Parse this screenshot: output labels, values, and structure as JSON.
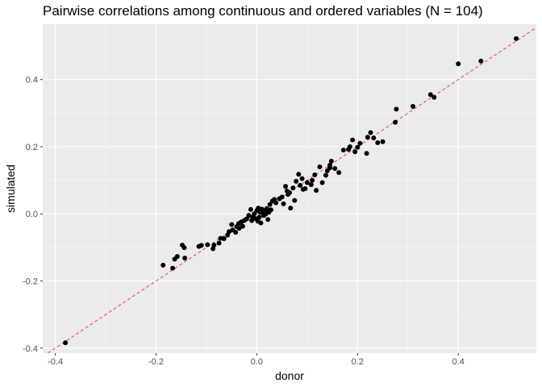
{
  "chart_data": {
    "type": "scatter",
    "title": "Pairwise correlations among continuous and ordered variables (N = 104)",
    "xlabel": "donor",
    "ylabel": "simulated",
    "xlim": [
      -0.425,
      0.555
    ],
    "ylim": [
      -0.415,
      0.565
    ],
    "xticks": [
      -0.4,
      -0.2,
      0.0,
      0.2,
      0.4
    ],
    "yticks": [
      -0.4,
      -0.2,
      0.0,
      0.2,
      0.4
    ],
    "xtick_labels": [
      "-0.4",
      "-0.2",
      "0.0",
      "0.2",
      "0.4"
    ],
    "ytick_labels": [
      "-0.4",
      "-0.2",
      "0.0",
      "0.2",
      "0.4"
    ],
    "grid": true,
    "reference_line": {
      "slope": 1,
      "intercept": 0,
      "style": "dashed",
      "color": "#e05a6e"
    },
    "point_color": "#000000",
    "panel_background": "#ebebeb",
    "points": [
      [
        -0.38,
        -0.384
      ],
      [
        -0.186,
        -0.153
      ],
      [
        -0.167,
        -0.162
      ],
      [
        -0.163,
        -0.135
      ],
      [
        -0.158,
        -0.127
      ],
      [
        -0.148,
        -0.093
      ],
      [
        -0.144,
        -0.101
      ],
      [
        -0.143,
        -0.132
      ],
      [
        -0.115,
        -0.097
      ],
      [
        -0.11,
        -0.094
      ],
      [
        -0.098,
        -0.092
      ],
      [
        -0.087,
        -0.104
      ],
      [
        -0.085,
        -0.093
      ],
      [
        -0.075,
        -0.087
      ],
      [
        -0.072,
        -0.073
      ],
      [
        -0.065,
        -0.074
      ],
      [
        -0.058,
        -0.063
      ],
      [
        -0.055,
        -0.053
      ],
      [
        -0.048,
        -0.048
      ],
      [
        -0.042,
        -0.055
      ],
      [
        -0.04,
        -0.038
      ],
      [
        -0.036,
        -0.029
      ],
      [
        -0.035,
        -0.043
      ],
      [
        -0.031,
        -0.024
      ],
      [
        -0.028,
        -0.037
      ],
      [
        -0.025,
        -0.02
      ],
      [
        -0.02,
        -0.015
      ],
      [
        -0.016,
        -0.005
      ],
      [
        -0.012,
        0.013
      ],
      [
        -0.01,
        -0.02
      ],
      [
        -0.008,
        -0.01
      ],
      [
        -0.005,
        0.0
      ],
      [
        -0.003,
        -0.014
      ],
      [
        0.0,
        0.01
      ],
      [
        0.002,
        -0.022
      ],
      [
        0.003,
        0.017
      ],
      [
        0.005,
        -0.01
      ],
      [
        0.006,
        0.005
      ],
      [
        0.008,
        -0.027
      ],
      [
        0.01,
        0.014
      ],
      [
        0.012,
        0.002
      ],
      [
        0.014,
        -0.005
      ],
      [
        0.016,
        0.01
      ],
      [
        0.018,
        0.0
      ],
      [
        0.02,
        0.016
      ],
      [
        0.022,
        -0.017
      ],
      [
        0.024,
        0.005
      ],
      [
        0.026,
        0.028
      ],
      [
        0.028,
        0.012
      ],
      [
        0.031,
        0.038
      ],
      [
        0.035,
        0.043
      ],
      [
        0.038,
        0.033
      ],
      [
        0.045,
        0.045
      ],
      [
        0.05,
        0.05
      ],
      [
        0.053,
        0.03
      ],
      [
        0.057,
        0.082
      ],
      [
        0.062,
        0.058
      ],
      [
        0.065,
        0.063
      ],
      [
        0.067,
        0.017
      ],
      [
        0.072,
        0.077
      ],
      [
        0.075,
        0.04
      ],
      [
        0.078,
        0.097
      ],
      [
        0.083,
        0.118
      ],
      [
        0.086,
        0.085
      ],
      [
        0.09,
        0.105
      ],
      [
        0.092,
        0.073
      ],
      [
        0.096,
        0.075
      ],
      [
        0.1,
        0.093
      ],
      [
        0.11,
        0.1
      ],
      [
        0.115,
        0.116
      ],
      [
        0.118,
        0.07
      ],
      [
        0.125,
        0.14
      ],
      [
        0.13,
        0.093
      ],
      [
        0.137,
        0.115
      ],
      [
        0.14,
        0.128
      ],
      [
        0.145,
        0.137
      ],
      [
        0.148,
        0.157
      ],
      [
        0.155,
        0.135
      ],
      [
        0.163,
        0.123
      ],
      [
        0.172,
        0.19
      ],
      [
        0.182,
        0.192
      ],
      [
        0.185,
        0.2
      ],
      [
        0.19,
        0.22
      ],
      [
        0.195,
        0.185
      ],
      [
        0.2,
        0.198
      ],
      [
        0.205,
        0.21
      ],
      [
        0.218,
        0.18
      ],
      [
        0.22,
        0.228
      ],
      [
        0.226,
        0.242
      ],
      [
        0.232,
        0.226
      ],
      [
        0.24,
        0.212
      ],
      [
        0.25,
        0.215
      ],
      [
        0.275,
        0.273
      ],
      [
        0.277,
        0.312
      ],
      [
        0.31,
        0.32
      ],
      [
        0.345,
        0.355
      ],
      [
        0.352,
        0.347
      ],
      [
        0.4,
        0.447
      ],
      [
        0.445,
        0.455
      ],
      [
        0.515,
        0.522
      ],
      [
        0.145,
        0.145
      ],
      [
        -0.05,
        -0.032
      ],
      [
        0.06,
        0.068
      ],
      [
        0.108,
        0.087
      ]
    ]
  }
}
